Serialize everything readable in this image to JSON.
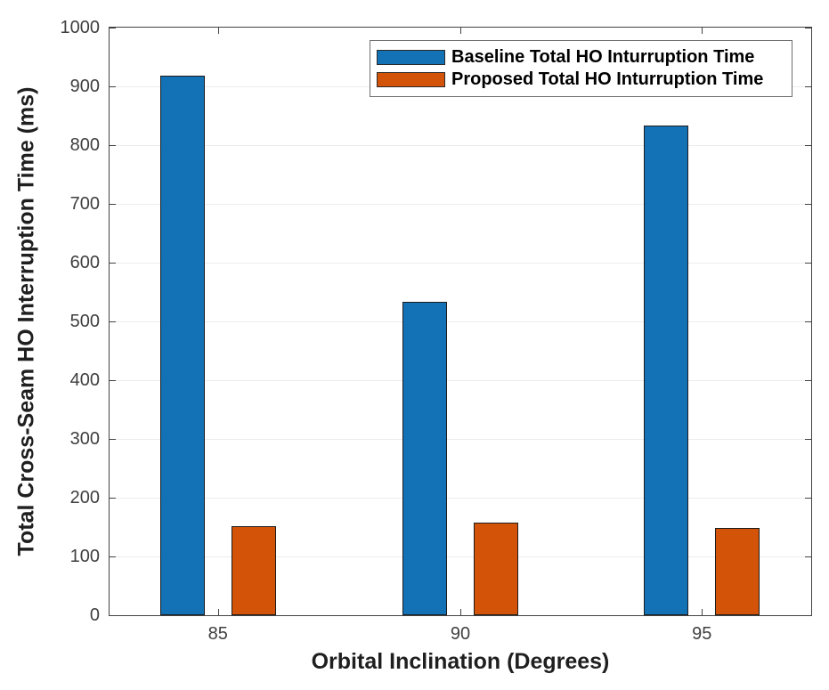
{
  "chart_data": {
    "type": "bar",
    "title": "",
    "xlabel": "Orbital Inclination (Degrees)",
    "ylabel": "Total Cross-Seam HO Interruption Time (ms)",
    "categories": [
      "85",
      "90",
      "95"
    ],
    "series": [
      {
        "name": "Baseline Total HO Inturruption Time",
        "color": "#1371B6",
        "values": [
          918,
          534,
          834
        ]
      },
      {
        "name": "Proposed Total HO Inturruption Time",
        "color": "#D35309",
        "values": [
          151,
          158,
          149
        ]
      }
    ],
    "ylim": [
      0,
      1000
    ],
    "yticks": [
      0,
      100,
      200,
      300,
      400,
      500,
      600,
      700,
      800,
      900,
      1000
    ],
    "grid": true,
    "legend_position": "top-center"
  }
}
